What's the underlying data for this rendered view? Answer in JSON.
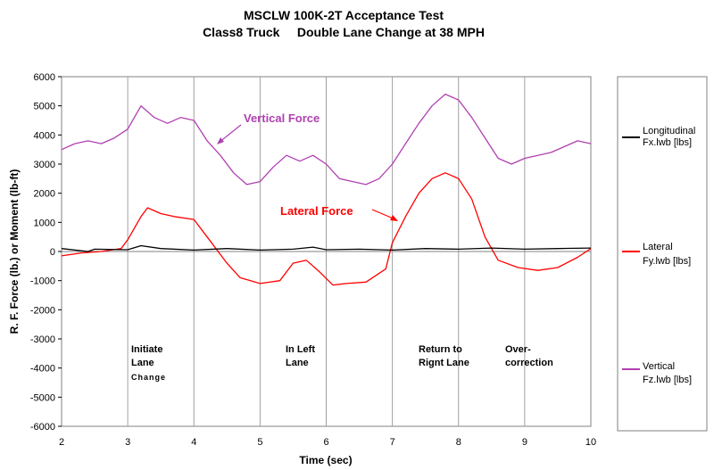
{
  "chart_data": {
    "type": "line",
    "title": "MSCLW 100K-2T Acceptance Test",
    "subtitle": "Class8 Truck     Double Lane Change at 38 MPH",
    "xlabel": "Time (sec)",
    "ylabel": "R. F. Force (lb.) or Moment (lb-ft)",
    "xlim": [
      2,
      10
    ],
    "ylim": [
      -6000,
      6000
    ],
    "xticks": [
      "2",
      "3",
      "4",
      "5",
      "6",
      "7",
      "8",
      "9",
      "10"
    ],
    "yticks": [
      "6000",
      "5000",
      "4000",
      "3000",
      "2000",
      "1000",
      "0",
      "-1000",
      "-2000",
      "-3000",
      "-4000",
      "-5000",
      "-6000"
    ],
    "grid": "vertical",
    "legend_position": "right",
    "series": [
      {
        "name": "Longitudinal Fx.lwb [lbs]",
        "color": "#000000",
        "x": [
          2.0,
          2.4,
          2.5,
          3.0,
          3.2,
          3.5,
          4.0,
          4.5,
          5.0,
          5.5,
          5.8,
          6.0,
          6.5,
          7.0,
          7.5,
          8.0,
          8.5,
          9.0,
          9.5,
          10.0
        ],
        "y": [
          100,
          0,
          80,
          60,
          200,
          100,
          50,
          100,
          50,
          80,
          150,
          60,
          80,
          50,
          100,
          80,
          120,
          80,
          100,
          120
        ]
      },
      {
        "name": "Lateral Fy.lwb [lbs]",
        "color": "#ff0000",
        "x": [
          2.0,
          2.3,
          2.6,
          2.9,
          3.0,
          3.2,
          3.3,
          3.5,
          3.7,
          4.0,
          4.2,
          4.5,
          4.7,
          5.0,
          5.3,
          5.5,
          5.7,
          5.9,
          6.1,
          6.3,
          6.6,
          6.9,
          7.0,
          7.2,
          7.4,
          7.6,
          7.8,
          8.0,
          8.2,
          8.4,
          8.6,
          8.9,
          9.2,
          9.5,
          9.8,
          10.0
        ],
        "y": [
          -150,
          -50,
          0,
          100,
          400,
          1200,
          1500,
          1300,
          1200,
          1100,
          500,
          -400,
          -900,
          -1100,
          -1000,
          -400,
          -300,
          -700,
          -1150,
          -1100,
          -1050,
          -600,
          300,
          1200,
          2000,
          2500,
          2700,
          2500,
          1800,
          500,
          -300,
          -550,
          -650,
          -550,
          -200,
          100
        ]
      },
      {
        "name": "Vertical Fz.lwb [lbs]",
        "color": "#b040b0",
        "x": [
          2.0,
          2.2,
          2.4,
          2.6,
          2.8,
          3.0,
          3.1,
          3.2,
          3.4,
          3.6,
          3.8,
          4.0,
          4.2,
          4.4,
          4.6,
          4.8,
          5.0,
          5.2,
          5.4,
          5.6,
          5.8,
          6.0,
          6.2,
          6.4,
          6.6,
          6.8,
          7.0,
          7.2,
          7.4,
          7.6,
          7.8,
          8.0,
          8.2,
          8.4,
          8.6,
          8.8,
          9.0,
          9.2,
          9.4,
          9.6,
          9.8,
          10.0
        ],
        "y": [
          3500,
          3700,
          3800,
          3700,
          3900,
          4200,
          4600,
          5000,
          4600,
          4400,
          4600,
          4500,
          3800,
          3300,
          2700,
          2300,
          2400,
          2900,
          3300,
          3100,
          3300,
          3000,
          2500,
          2400,
          2300,
          2500,
          3000,
          3700,
          4400,
          5000,
          5400,
          5200,
          4600,
          3900,
          3200,
          3000,
          3200,
          3300,
          3400,
          3600,
          3800,
          3700
        ]
      }
    ],
    "annotations": {
      "vertical_force": "Vertical Force",
      "lateral_force": "Lateral Force",
      "initiate_1": "Initiate",
      "initiate_2": "Lane",
      "initiate_3": "Change",
      "left_1": "In Left",
      "left_2": "Lane",
      "return_1": "Return to",
      "return_2": "Rignt Lane",
      "over_1": "Over-",
      "over_2": "correction"
    },
    "legend": {
      "longitudinal_1": "Longitudinal",
      "longitudinal_2": "Fx.lwb [lbs]",
      "lateral_1": "Lateral",
      "lateral_2": "Fy.lwb [lbs]",
      "vertical_1": "Vertical",
      "vertical_2": "Fz.lwb [lbs]"
    }
  }
}
